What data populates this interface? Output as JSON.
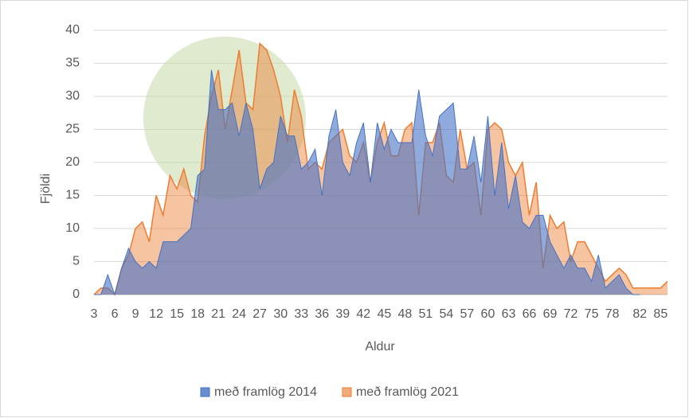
{
  "chart_data": {
    "type": "area",
    "x_label": "Aldur",
    "y_label": "Fjöldi",
    "x": [
      3,
      4,
      5,
      6,
      7,
      8,
      9,
      10,
      11,
      12,
      13,
      14,
      15,
      16,
      17,
      18,
      19,
      20,
      21,
      22,
      23,
      24,
      25,
      26,
      27,
      28,
      29,
      30,
      31,
      32,
      33,
      34,
      35,
      36,
      37,
      38,
      39,
      40,
      41,
      42,
      43,
      44,
      45,
      46,
      47,
      48,
      49,
      50,
      51,
      52,
      53,
      54,
      55,
      56,
      57,
      58,
      59,
      60,
      61,
      62,
      63,
      64,
      65,
      66,
      67,
      68,
      69,
      70,
      71,
      72,
      73,
      74,
      75,
      76,
      77,
      78,
      79,
      80,
      81,
      82,
      83,
      84,
      85,
      86
    ],
    "series": [
      {
        "name": "með framlög 2021",
        "color": "#ed7d31",
        "values": [
          0,
          1,
          1,
          0,
          4,
          6,
          10,
          11,
          8,
          15,
          12,
          18,
          16,
          19,
          15,
          14,
          24,
          30,
          34,
          25,
          31,
          37,
          29,
          28,
          38,
          37,
          34,
          30,
          23,
          31,
          27,
          19,
          20,
          19,
          23,
          24,
          25,
          21,
          20,
          23,
          17,
          23,
          26,
          21,
          21,
          25,
          26,
          12,
          23,
          23,
          26,
          18,
          17,
          25,
          19,
          20,
          12,
          25,
          26,
          25,
          20,
          18,
          20,
          12,
          17,
          4,
          12,
          10,
          11,
          5,
          8,
          8,
          6,
          4,
          2,
          3,
          4,
          3,
          1,
          1,
          1,
          1,
          1,
          2
        ]
      },
      {
        "name": "með framlög 2014",
        "color": "#4472c4",
        "values": [
          0,
          0,
          3,
          0,
          4,
          7,
          5,
          4,
          5,
          4,
          8,
          8,
          8,
          9,
          10,
          18,
          19,
          34,
          28,
          28,
          29,
          24,
          29,
          25,
          16,
          19,
          20,
          27,
          24,
          24,
          19,
          20,
          22,
          15,
          24,
          28,
          20,
          18,
          23,
          26,
          17,
          26,
          22,
          25,
          23,
          23,
          23,
          31,
          24,
          21,
          27,
          28,
          29,
          19,
          19,
          24,
          17,
          27,
          15,
          23,
          13,
          18,
          11,
          10,
          12,
          12,
          8,
          6,
          4,
          6,
          4,
          4,
          2,
          6,
          1,
          2,
          3,
          1,
          0,
          0,
          null,
          null,
          null,
          null
        ]
      }
    ],
    "legend_order": [
      1,
      0
    ],
    "xlim": [
      3,
      86
    ],
    "xticks": [
      3,
      6,
      9,
      12,
      15,
      18,
      21,
      24,
      27,
      30,
      33,
      36,
      39,
      42,
      45,
      48,
      51,
      54,
      57,
      60,
      63,
      66,
      69,
      72,
      75,
      78,
      82,
      85
    ],
    "ylim": [
      0,
      40
    ],
    "yticks": [
      0,
      5,
      10,
      15,
      20,
      25,
      30,
      35,
      40
    ],
    "grid": true
  }
}
